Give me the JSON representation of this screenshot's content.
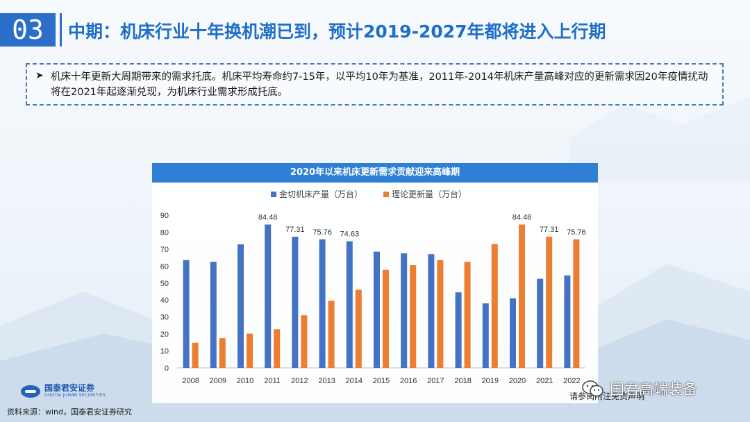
{
  "header": {
    "section_number": "03",
    "title": "中期：机床行业十年换机潮已到，预计2019-2027年都将进入上行期"
  },
  "bullet": {
    "text": "机床十年更新大周期带来的需求托底。机床平均寿命约7-15年，以平均10年为基准，2011年-2014年机床产量高峰对应的更新需求因20年疫情扰动将在2021年起逐渐兑现，为机床行业需求形成托底。"
  },
  "chart_data": {
    "type": "bar",
    "title": "2020年以来机床更新需求贡献迎来高峰期",
    "categories": [
      "2008",
      "2009",
      "2010",
      "2011",
      "2012",
      "2013",
      "2014",
      "2015",
      "2016",
      "2017",
      "2018",
      "2019",
      "2020",
      "2021",
      "2022"
    ],
    "series": [
      {
        "name": "金切机床产量（万台）",
        "color": "#4472c4",
        "values": [
          63.5,
          62.5,
          72.8,
          84.48,
          77.31,
          75.76,
          74.63,
          68.5,
          67.5,
          67,
          44.5,
          38,
          41,
          52.5,
          54.5
        ]
      },
      {
        "name": "理论更新量（万台）",
        "color": "#ed7d31",
        "values": [
          14.8,
          17.5,
          20.2,
          22.8,
          31,
          39.5,
          46,
          57.8,
          60.5,
          63.5,
          62.5,
          73,
          84.48,
          77.31,
          75.76
        ]
      }
    ],
    "data_labels": [
      {
        "series": 0,
        "index": 3,
        "text": "84.48"
      },
      {
        "series": 0,
        "index": 4,
        "text": "77.31"
      },
      {
        "series": 0,
        "index": 5,
        "text": "75.76"
      },
      {
        "series": 0,
        "index": 6,
        "text": "74.63"
      },
      {
        "series": 1,
        "index": 12,
        "text": "84.48"
      },
      {
        "series": 1,
        "index": 13,
        "text": "77.31"
      },
      {
        "series": 1,
        "index": 14,
        "text": "75.76"
      }
    ],
    "ylim": [
      0,
      90
    ],
    "yticks": [
      0,
      10,
      20,
      30,
      40,
      50,
      60,
      70,
      80,
      90
    ],
    "legend_position": "top"
  },
  "logo": {
    "name_cn": "国泰君安证券",
    "name_en": "GUOTAI JUNAN SECURITIES"
  },
  "source": "资料来源：wind，国泰君安证券研究",
  "watermark": {
    "text": "国君高端装备"
  },
  "footer_note": "请参阅附注免责声明"
}
